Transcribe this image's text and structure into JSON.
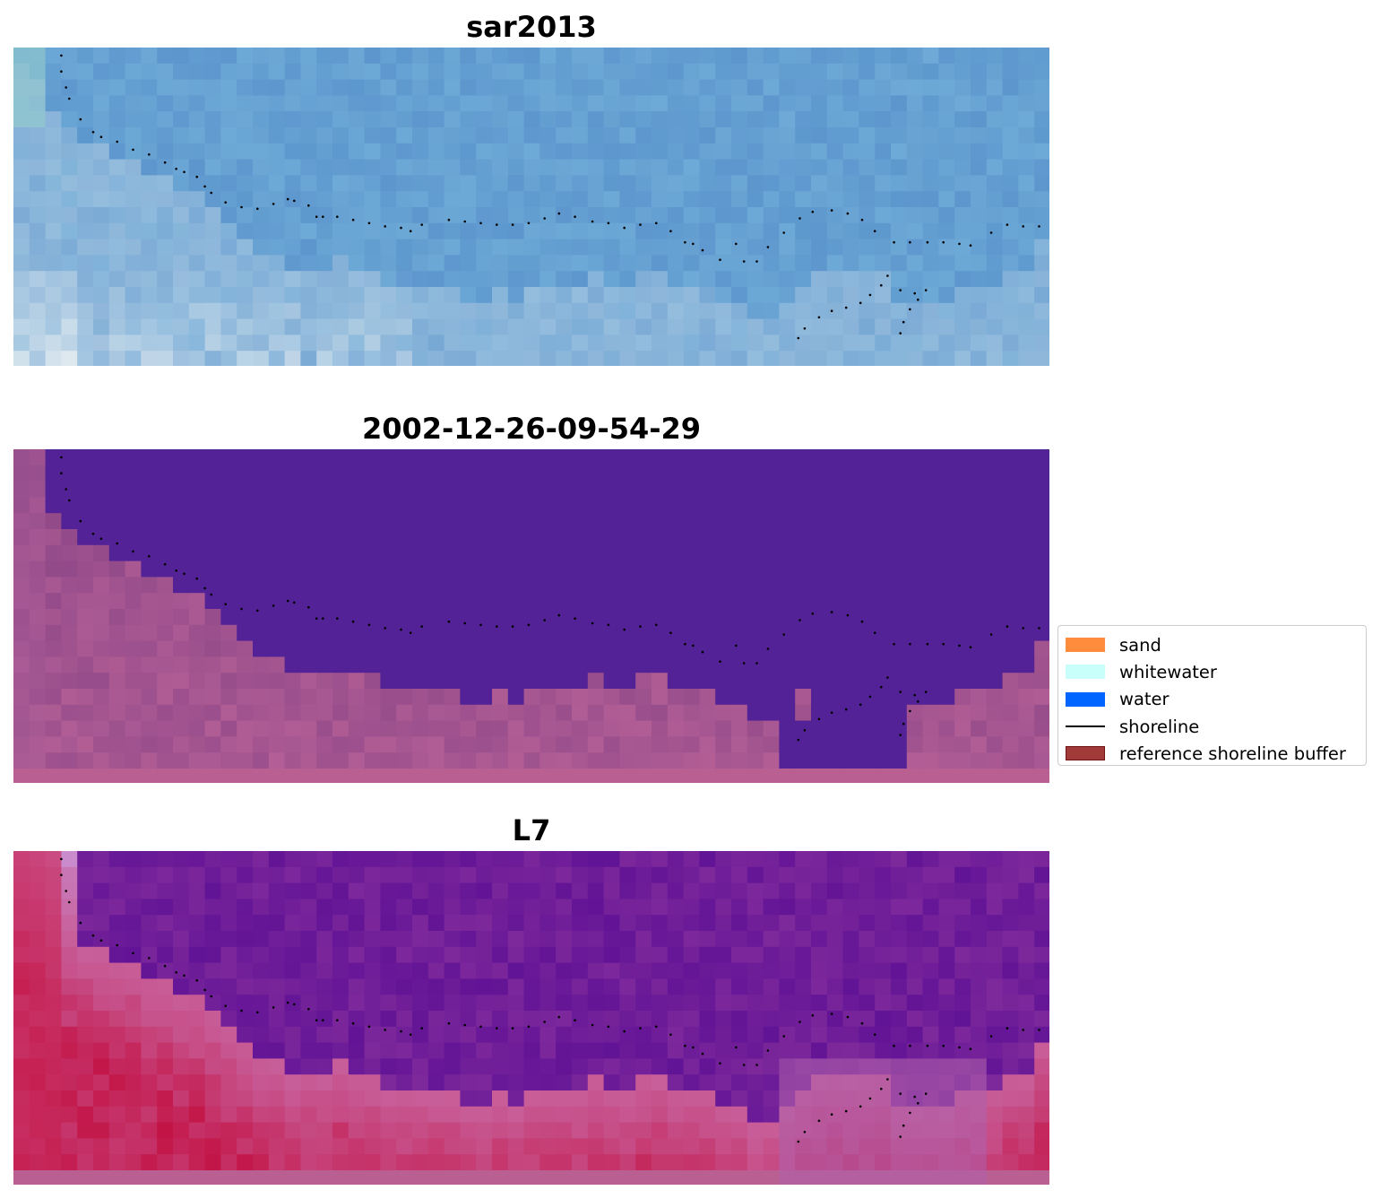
{
  "panels": [
    {
      "title": "sar2013",
      "style": "sar"
    },
    {
      "title": "2002-12-26-09-54-29",
      "style": "classified"
    },
    {
      "title": "L7",
      "style": "falsecolor"
    }
  ],
  "legend": {
    "items": [
      {
        "label": "sand",
        "color": "#ff8c3c",
        "kind": "patch"
      },
      {
        "label": "whitewater",
        "color": "#c8fffa",
        "kind": "patch"
      },
      {
        "label": "water",
        "color": "#0064ff",
        "kind": "patch"
      },
      {
        "label": "shoreline",
        "color": "#000000",
        "kind": "line"
      },
      {
        "label": "reference shoreline buffer",
        "color": "#a33a3a",
        "kind": "patch"
      }
    ]
  }
}
